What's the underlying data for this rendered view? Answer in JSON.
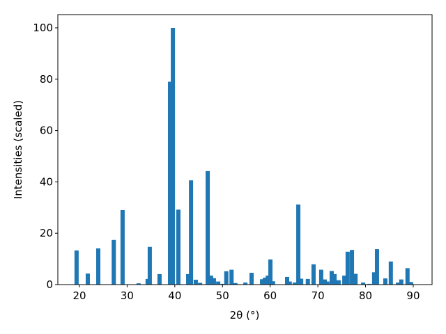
{
  "chart_data": {
    "type": "bar",
    "x_label": "2θ (°)",
    "y_label": "Intensities (scaled)",
    "x": [
      19.4,
      21.75,
      23.95,
      27.2,
      29.05,
      32.4,
      34.3,
      34.75,
      36.8,
      39.0,
      39.6,
      40.75,
      42.8,
      43.4,
      44.4,
      45.3,
      46.9,
      47.6,
      48.2,
      49.1,
      50.0,
      50.8,
      51.9,
      52.7,
      54.8,
      56.1,
      58.3,
      58.9,
      59.5,
      60.05,
      60.6,
      63.55,
      64.1,
      65.15,
      65.9,
      66.5,
      67.9,
      69.1,
      70.7,
      71.45,
      72.0,
      72.9,
      73.5,
      74.35,
      75.55,
      76.25,
      77.15,
      77.9,
      79.5,
      80.8,
      81.8,
      82.4,
      84.15,
      85.3,
      86.8,
      87.5,
      88.8,
      89.55
    ],
    "values": [
      13.3,
      4.3,
      14.1,
      17.4,
      29,
      0.5,
      2.2,
      14.7,
      4.1,
      79,
      100,
      29.2,
      4.1,
      40.6,
      1.9,
      0.7,
      44.2,
      3.5,
      2.5,
      1.2,
      0.3,
      5.2,
      5.8,
      0.6,
      0.8,
      4.6,
      2.1,
      2.7,
      3.5,
      9.8,
      1.3,
      3.0,
      1.2,
      0.8,
      31.2,
      2.3,
      2.2,
      7.9,
      5.8,
      2.0,
      1.2,
      5.3,
      4.1,
      1.7,
      3.5,
      12.8,
      13.5,
      4.2,
      0.8,
      0.3,
      4.8,
      13.8,
      2.4,
      9.0,
      0.8,
      2.0,
      6.4,
      1.0
    ],
    "color": "#1f77b4",
    "xlim": [
      15.47,
      93.95
    ],
    "xticks": [
      20,
      30,
      40,
      50,
      60,
      70,
      80,
      90
    ],
    "ylim": [
      0,
      105.15
    ],
    "yticks": [
      0,
      20,
      40,
      60,
      80,
      100
    ],
    "grid": false
  }
}
